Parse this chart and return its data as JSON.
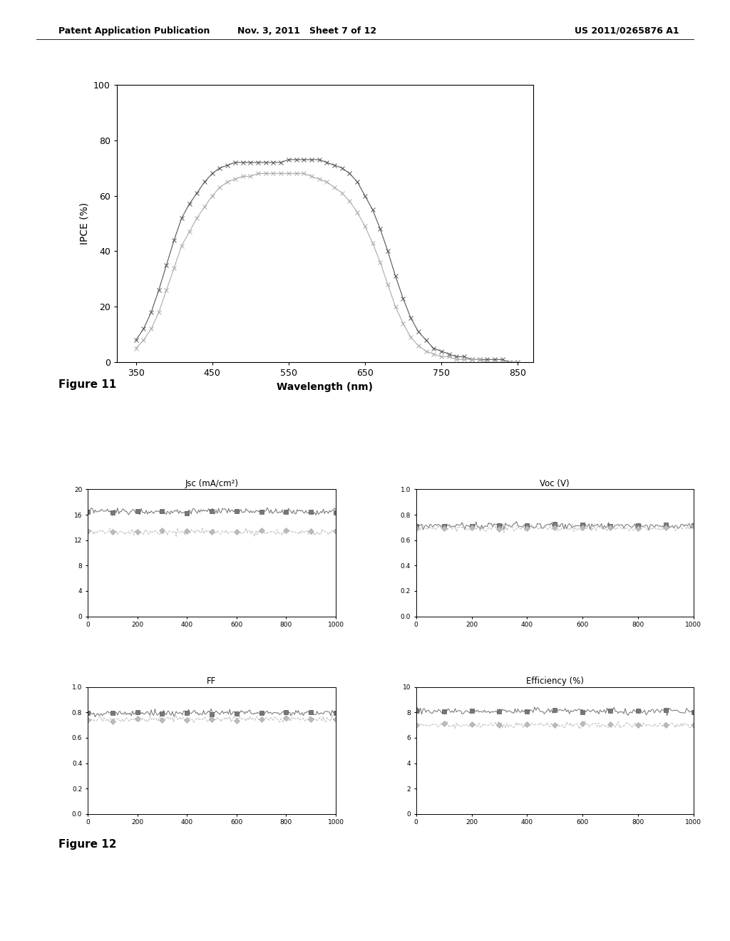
{
  "fig11": {
    "xlabel": "Wavelength (nm)",
    "ylabel": "IPCE (%)",
    "xlim": [
      325,
      870
    ],
    "ylim": [
      0,
      100
    ],
    "xticks": [
      350,
      450,
      550,
      650,
      750,
      850
    ],
    "yticks": [
      0,
      20,
      40,
      60,
      80,
      100
    ],
    "line1_x": [
      350,
      360,
      370,
      380,
      390,
      400,
      410,
      420,
      430,
      440,
      450,
      460,
      470,
      480,
      490,
      500,
      510,
      520,
      530,
      540,
      550,
      560,
      570,
      580,
      590,
      600,
      610,
      620,
      630,
      640,
      650,
      660,
      670,
      680,
      690,
      700,
      710,
      720,
      730,
      740,
      750,
      760,
      770,
      780,
      790,
      800,
      810,
      820,
      830,
      840,
      850
    ],
    "line1_y": [
      8,
      12,
      18,
      26,
      35,
      44,
      52,
      57,
      61,
      65,
      68,
      70,
      71,
      72,
      72,
      72,
      72,
      72,
      72,
      72,
      73,
      73,
      73,
      73,
      73,
      72,
      71,
      70,
      68,
      65,
      60,
      55,
      48,
      40,
      31,
      23,
      16,
      11,
      8,
      5,
      4,
      3,
      2,
      2,
      1,
      1,
      1,
      1,
      1,
      0,
      0
    ],
    "line2_x": [
      350,
      360,
      370,
      380,
      390,
      400,
      410,
      420,
      430,
      440,
      450,
      460,
      470,
      480,
      490,
      500,
      510,
      520,
      530,
      540,
      550,
      560,
      570,
      580,
      590,
      600,
      610,
      620,
      630,
      640,
      650,
      660,
      670,
      680,
      690,
      700,
      710,
      720,
      730,
      740,
      750,
      760,
      770,
      780,
      790,
      800,
      810,
      820,
      830,
      840,
      850
    ],
    "line2_y": [
      5,
      8,
      12,
      18,
      26,
      34,
      42,
      47,
      52,
      56,
      60,
      63,
      65,
      66,
      67,
      67,
      68,
      68,
      68,
      68,
      68,
      68,
      68,
      67,
      66,
      65,
      63,
      61,
      58,
      54,
      49,
      43,
      36,
      28,
      20,
      14,
      9,
      6,
      4,
      3,
      2,
      2,
      1,
      1,
      1,
      1,
      0,
      0,
      0,
      0,
      0
    ],
    "line1_color": "#555555",
    "line2_color": "#aaaaaa",
    "marker": "x",
    "markersize": 4,
    "linewidth": 0.8
  },
  "fig12": {
    "subplot_titles": [
      "Jsc (mA/cm²)",
      "Voc (V)",
      "FF",
      "Efficiency (%)"
    ],
    "xlim": [
      0,
      1000
    ],
    "xticks": [
      0,
      200,
      400,
      600,
      800,
      1000
    ],
    "subplots": [
      {
        "ylim": [
          0,
          20
        ],
        "yticks": [
          0,
          4,
          8,
          12,
          16,
          20
        ],
        "line1_y_base": 16.5,
        "line2_y_base": 13.3,
        "noise_scale1": 0.25,
        "noise_scale2": 0.25
      },
      {
        "ylim": [
          0,
          1
        ],
        "yticks": [
          0,
          0.2,
          0.4,
          0.6,
          0.8,
          1.0
        ],
        "line1_y_base": 0.715,
        "line2_y_base": 0.695,
        "noise_scale1": 0.012,
        "noise_scale2": 0.012
      },
      {
        "ylim": [
          0,
          1
        ],
        "yticks": [
          0,
          0.2,
          0.4,
          0.6,
          0.8,
          1.0
        ],
        "line1_y_base": 0.795,
        "line2_y_base": 0.745,
        "noise_scale1": 0.012,
        "noise_scale2": 0.012
      },
      {
        "ylim": [
          0,
          10
        ],
        "yticks": [
          0,
          2,
          4,
          6,
          8,
          10
        ],
        "line1_y_base": 8.1,
        "line2_y_base": 7.0,
        "noise_scale1": 0.12,
        "noise_scale2": 0.12
      }
    ],
    "line1_color": "#555555",
    "line2_color": "#aaaaaa",
    "marker1": "s",
    "marker2": "D",
    "markersize": 4,
    "linewidth": 0.7
  },
  "header_left": "Patent Application Publication",
  "header_mid": "Nov. 3, 2011   Sheet 7 of 12",
  "header_right": "US 2011/0265876 A1",
  "fig11_label": "Figure 11",
  "fig12_label": "Figure 12",
  "bg_color": "#ffffff",
  "text_color": "#000000"
}
